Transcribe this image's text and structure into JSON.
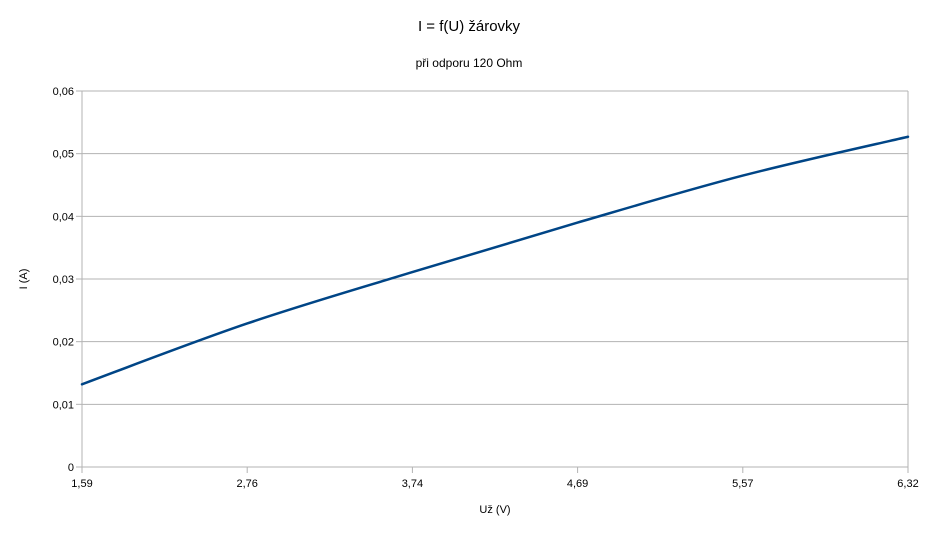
{
  "chart_data": {
    "type": "line",
    "title": "I = f(U) žárovky",
    "subtitle": "při odporu 120 Ohm",
    "xlabel": "Už (V)",
    "ylabel": "I (A)",
    "x_tick_labels": [
      "1,59",
      "2,76",
      "3,74",
      "4,69",
      "5,57",
      "6,32"
    ],
    "y_tick_labels": [
      "0",
      "0,01",
      "0,02",
      "0,03",
      "0,04",
      "0,05",
      "0,06"
    ],
    "ylim": [
      0,
      0.06
    ],
    "grid": true,
    "legend": "none",
    "line_color": "#004586",
    "series": [
      {
        "x": [
          "1,59",
          "2,76",
          "3,74",
          "4,69",
          "5,57",
          "6,32"
        ],
        "values": [
          0.0132,
          0.0229,
          0.0311,
          0.039,
          0.0465,
          0.0527
        ]
      }
    ]
  }
}
